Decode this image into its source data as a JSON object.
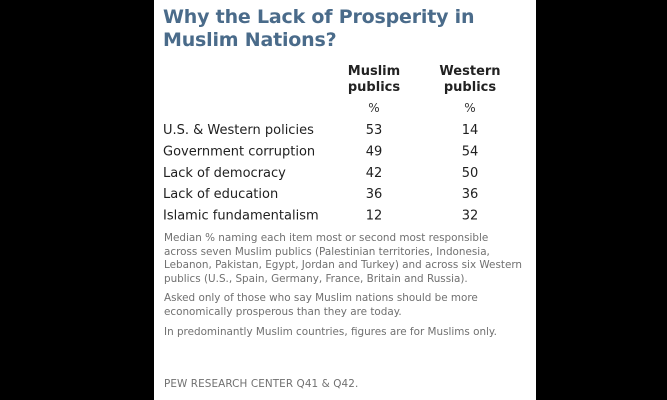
{
  "title": "Why the Lack of Prosperity in Muslim Nations?",
  "colors": {
    "title": "#4a6b8a",
    "notes": "#707070",
    "background": "#ffffff",
    "frame": "#000000"
  },
  "chart_data": {
    "type": "table",
    "title": "Why the Lack of Prosperity in Muslim Nations?",
    "columns": [
      {
        "name": "Muslim publics",
        "lines": [
          "Muslim",
          "publics"
        ],
        "unit": "%"
      },
      {
        "name": "Western publics",
        "lines": [
          "Western",
          "publics"
        ],
        "unit": "%"
      }
    ],
    "rows": [
      {
        "label": "U.S. & Western policies",
        "values": [
          53,
          14
        ]
      },
      {
        "label": "Government corruption",
        "values": [
          49,
          54
        ]
      },
      {
        "label": "Lack of democracy",
        "values": [
          42,
          50
        ]
      },
      {
        "label": "Lack of education",
        "values": [
          36,
          36
        ]
      },
      {
        "label": "Islamic fundamentalism",
        "values": [
          12,
          32
        ]
      }
    ]
  },
  "notes": [
    "Median % naming each item most or second most responsible across seven Muslim publics (Palestinian territories, Indonesia, Lebanon, Pakistan, Egypt, Jordan and Turkey) and across six Western publics (U.S., Spain, Germany, France, Britain and Russia).",
    "Asked only of those who say Muslim nations should be more economically prosperous than they are today.",
    "In predominantly Muslim countries, figures are for Muslims only."
  ],
  "source": "PEW RESEARCH  CENTER Q41 & Q42."
}
